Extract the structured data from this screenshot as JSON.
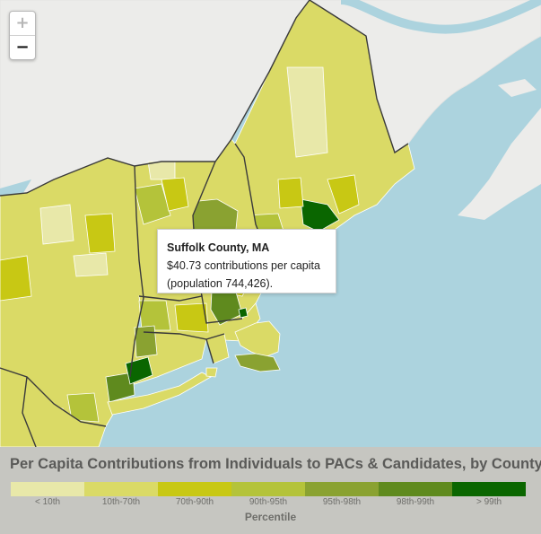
{
  "map": {
    "zoom_in_label": "+",
    "zoom_out_label": "−",
    "colors": {
      "water": "#acd3de",
      "land": "#ececea",
      "borders": "#ffffff",
      "state_borders": "#3a3a3a"
    }
  },
  "tooltip": {
    "title": "Suffolk County, MA",
    "line1": "$40.73 contributions per capita",
    "line2": "(population 744,426)."
  },
  "legend": {
    "title": "Per Capita Contributions from Individuals to PACs & Candidates, by County",
    "axis_label": "Percentile",
    "bins": [
      {
        "label": "< 10th",
        "color": "#e8e8a9"
      },
      {
        "label": "10th-70th",
        "color": "#dada66"
      },
      {
        "label": "70th-90th",
        "color": "#c8c814"
      },
      {
        "label": "90th-95th",
        "color": "#b4c33a"
      },
      {
        "label": "95th-98th",
        "color": "#8aa231"
      },
      {
        "label": "98th-99th",
        "color": "#5f8a1e"
      },
      {
        "label": "> 99th",
        "color": "#0a6600"
      }
    ]
  }
}
